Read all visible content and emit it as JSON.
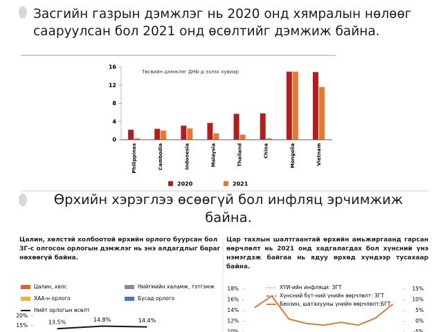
{
  "heading_1": "Засгийн газрын дэмжлэг нь 2020 онд хямралын нөлөөг сааруулсан бол 2021 онд өсөлтийг дэмжиж байна.",
  "heading_2": "Өрхийн хэрэглээ өсөөгүй бол инфляц эрчимжиж байна.",
  "chart_data": [
    {
      "type": "bar",
      "subtitle": "Төсвийн дэмжлэг ДНБ-д эзлэх хувиар",
      "categories": [
        "Philippines",
        "Cambodia",
        "Indonesia",
        "Malaysia",
        "Thailand",
        "China",
        "Mongolia",
        "Vietnam"
      ],
      "series": [
        {
          "name": "2020",
          "color": "#b71c1c",
          "values": [
            2.2,
            2.4,
            3.1,
            3.7,
            5.7,
            5.8,
            15.0,
            14.9
          ]
        },
        {
          "name": "2021",
          "color": "#e8782a",
          "values": [
            0.3,
            2.0,
            2.5,
            1.4,
            1.1,
            0.3,
            15.0,
            11.6
          ]
        }
      ],
      "ylim": [
        0,
        16
      ],
      "yticks": [
        0,
        4,
        8,
        12,
        16
      ]
    },
    {
      "type": "line",
      "title": "Цалин, хөлстэй холбоотой өрхийн орлого буурсан бол ЗГ-с олгосон орлогын дэмжлэг нь энэ алдагдлыг бараг нөхөөгүй байна.",
      "legend_entries": [
        {
          "name": "Цалин, хөлс",
          "color": "#e0622a"
        },
        {
          "name": "Нийгмийн халамж, тэтгэмж",
          "color": "#8c8c8c"
        },
        {
          "name": "ХАА-н орлого",
          "color": "#f2b53a"
        },
        {
          "name": "Бусад орлого",
          "color": "#3f7cc4"
        }
      ],
      "categories": [
        null,
        null,
        null
      ],
      "series": [
        {
          "name": "Нийт орлогын өсөлт",
          "color": "#111111",
          "values": [
            13.5,
            14.8,
            14.4
          ],
          "value_labels": [
            "13.5%",
            "14.8%",
            "14.4%"
          ]
        }
      ],
      "ylim": [
        12,
        20
      ],
      "yticks": [
        {
          "value": 20,
          "label": "20%"
        },
        {
          "value": 15,
          "label": "15%"
        }
      ]
    },
    {
      "type": "line",
      "title": "Цар тахлын шалтгаантай өрхийн амьжиргаанд гарсан өөрчлөлт нь 2021 онд хадгалагдах бол хүнсний үнэ нэмэгдэж байгаа нь ядуу өрхөд хүндээр тусахаар байна.",
      "legend_entries": [
        {
          "name": "ХҮИ-ийн инфляци: ЗГТ",
          "color": "#9a9a9a",
          "style": "dotted"
        },
        {
          "name": "Хүнсний бүт-ний үнийн өөрчлөлт: ЗГТ",
          "color": "#666666",
          "style": "dashed"
        }
      ],
      "categories": [
        null,
        null,
        null,
        null,
        null,
        null,
        null,
        null,
        null
      ],
      "series": [
        {
          "name": "Бензин, шатахууны үнийн өөрчлөлт:БГТ",
          "color": "#e8782a",
          "axis": "y2",
          "values": [
            6.3,
            11.8,
            1.0,
            -1.0,
            -1.8,
            -0.5,
            -1.8,
            1.5,
            8.0
          ]
        }
      ],
      "ylim": [
        10,
        18
      ],
      "yticks": [
        {
          "value": 18,
          "label": "18%"
        },
        {
          "value": 16,
          "label": "16%"
        },
        {
          "value": 14,
          "label": "14%"
        },
        {
          "value": 12,
          "label": "12%"
        },
        {
          "value": 10,
          "label": "10%"
        }
      ],
      "y2lim": [
        -5,
        15
      ],
      "y2ticks": [
        {
          "value": 15,
          "label": "15%"
        },
        {
          "value": 10,
          "label": "10%"
        },
        {
          "value": 5,
          "label": "5%"
        },
        {
          "value": 0,
          "label": "0%"
        },
        {
          "value": -5,
          "label": "-5%"
        }
      ]
    }
  ]
}
